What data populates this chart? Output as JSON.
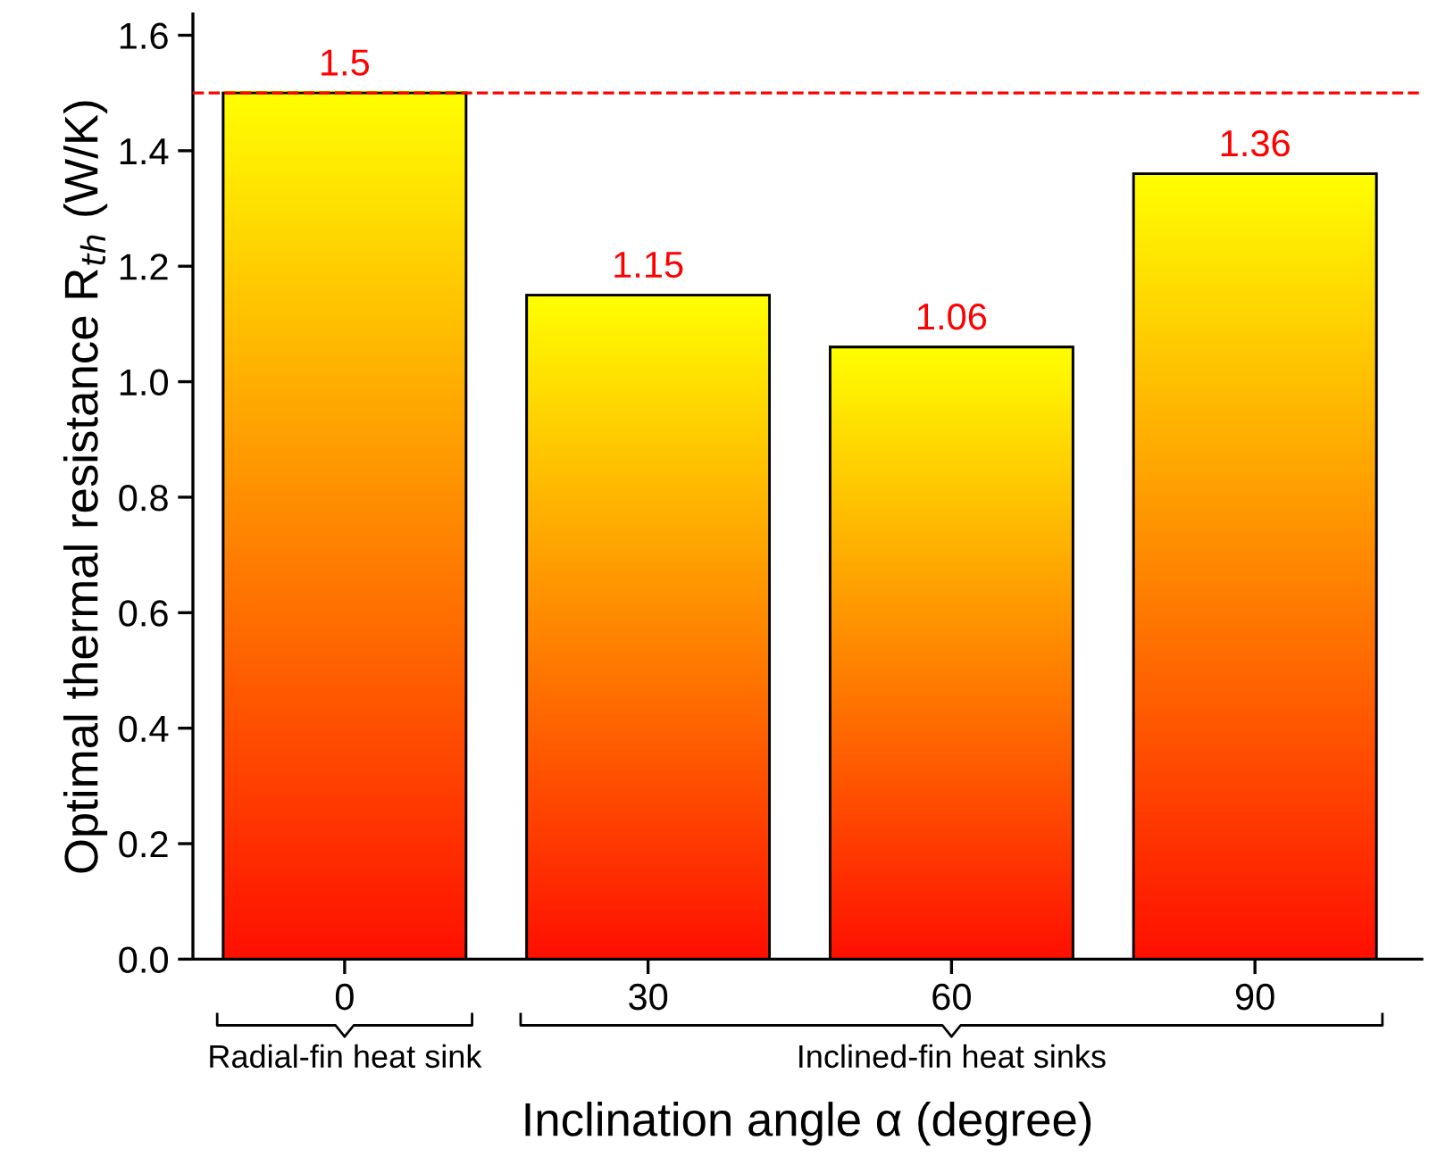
{
  "chart_data": {
    "type": "bar",
    "categories": [
      "0",
      "30",
      "60",
      "90"
    ],
    "values": [
      1.5,
      1.15,
      1.06,
      1.36
    ],
    "color": "#ffa000",
    "data_labels": true,
    "xlabel": "Inclination angle α (degree)",
    "ylabel": "Optimal thermal resistance R$_{th}$ (W/K)",
    "ylim": [
      0,
      1.637
    ],
    "yticks": [
      {
        "value": 0,
        "label": "0.0"
      },
      {
        "value": 0.2,
        "label": "0.2"
      },
      {
        "value": 0.4,
        "label": "0.4"
      },
      {
        "value": 0.6,
        "label": "0.6"
      },
      {
        "value": 0.8,
        "label": "0.8"
      },
      {
        "value": 1.0,
        "label": "1.0"
      },
      {
        "value": 1.2,
        "label": "1.2"
      },
      {
        "value": 1.4,
        "label": "1.4"
      },
      {
        "value": 1.6,
        "label": "1.6"
      }
    ],
    "ref_lines": [
      {
        "axis": "y",
        "value": 1.5,
        "color": "#ff0000",
        "line_style": "dashed"
      }
    ],
    "annotations": [
      "Radial-fin heat sink",
      "Inclined-fin heat sinks"
    ],
    "grid": false,
    "legend": false
  }
}
